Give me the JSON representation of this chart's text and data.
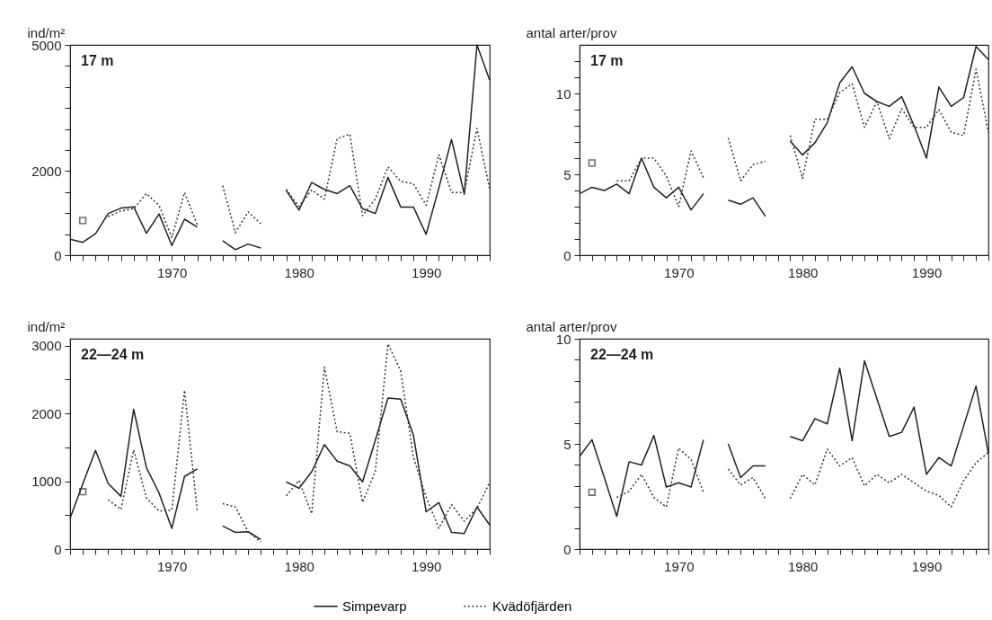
{
  "chart_data": [
    {
      "type": "line",
      "title": "17 m",
      "ylabel": "ind/m²",
      "legend": "bottom",
      "grid": false,
      "xlim": [
        1962,
        1995
      ],
      "ylim": [
        0,
        5000
      ],
      "xticks": [
        {
          "value": 1962,
          "label": null
        },
        {
          "value": 1963,
          "label": null
        },
        {
          "value": 1964,
          "label": null
        },
        {
          "value": 1965,
          "label": null
        },
        {
          "value": 1966,
          "label": null
        },
        {
          "value": 1967,
          "label": null
        },
        {
          "value": 1968,
          "label": null
        },
        {
          "value": 1969,
          "label": null
        },
        1970,
        {
          "value": 1971,
          "label": null
        },
        {
          "value": 1972,
          "label": null
        },
        {
          "value": 1973,
          "label": null
        },
        {
          "value": 1974,
          "label": null
        },
        {
          "value": 1975,
          "label": null
        },
        {
          "value": 1976,
          "label": null
        },
        {
          "value": 1977,
          "label": null
        },
        {
          "value": 1978,
          "label": null
        },
        {
          "value": 1979,
          "label": null
        },
        1980,
        {
          "value": 1981,
          "label": null
        },
        {
          "value": 1982,
          "label": null
        },
        {
          "value": 1983,
          "label": null
        },
        {
          "value": 1984,
          "label": null
        },
        {
          "value": 1985,
          "label": null
        },
        {
          "value": 1986,
          "label": null
        },
        {
          "value": 1987,
          "label": null
        },
        {
          "value": 1988,
          "label": null
        },
        {
          "value": 1989,
          "label": null
        },
        1990,
        {
          "value": 1991,
          "label": null
        },
        {
          "value": 1992,
          "label": null
        },
        {
          "value": 1993,
          "label": null
        },
        {
          "value": 1994,
          "label": null
        },
        {
          "value": 1995,
          "label": null
        }
      ],
      "yticks": [
        0,
        {
          "value": 500,
          "label": null
        },
        {
          "value": 1000,
          "label": null
        },
        {
          "value": 1500,
          "label": null
        },
        2000,
        {
          "value": 2500,
          "label": null
        },
        {
          "value": 3000,
          "label": null
        },
        {
          "value": 3500,
          "label": null
        },
        {
          "value": 4000,
          "label": null
        },
        {
          "value": 4500,
          "label": null
        },
        5000
      ],
      "x": [
        1962,
        1963,
        1964,
        1965,
        1966,
        1967,
        1968,
        1969,
        1970,
        1971,
        1972,
        1973,
        1974,
        1975,
        1976,
        1977,
        1978,
        1979,
        1980,
        1981,
        1982,
        1983,
        1984,
        1985,
        1986,
        1987,
        1988,
        1989,
        1990,
        1991,
        1992,
        1993,
        1994,
        1995
      ],
      "series": [
        {
          "name": "Simpevarp",
          "color": "#231f20",
          "line_style": "solid",
          "values": [
            380,
            305,
            510,
            990,
            1120,
            1150,
            520,
            980,
            230,
            855,
            670,
            null,
            345,
            130,
            265,
            170,
            null,
            1540,
            1070,
            1730,
            1565,
            1465,
            1655,
            1105,
            990,
            1850,
            1145,
            1145,
            495,
            1600,
            2750,
            1450,
            5000,
            4160
          ]
        },
        {
          "name": "Kvädöfjärden",
          "color": "#333333",
          "line_style": "dotted",
          "values": [
            null,
            825,
            null,
            915,
            1055,
            1105,
            1465,
            1185,
            420,
            1490,
            725,
            null,
            1655,
            535,
            1030,
            750,
            null,
            1565,
            1160,
            1550,
            1335,
            2770,
            2880,
            940,
            1335,
            2100,
            1755,
            1700,
            1185,
            2390,
            1490,
            1490,
            3015,
            1565
          ]
        }
      ]
    },
    {
      "type": "line",
      "title": "17 m",
      "ylabel": "antal arter/prov",
      "legend": "bottom",
      "grid": false,
      "xlim": [
        1962,
        1995
      ],
      "ylim": [
        0,
        13
      ],
      "xticks": [
        {
          "value": 1962,
          "label": null
        },
        {
          "value": 1963,
          "label": null
        },
        {
          "value": 1964,
          "label": null
        },
        {
          "value": 1965,
          "label": null
        },
        {
          "value": 1966,
          "label": null
        },
        {
          "value": 1967,
          "label": null
        },
        {
          "value": 1968,
          "label": null
        },
        {
          "value": 1969,
          "label": null
        },
        1970,
        {
          "value": 1971,
          "label": null
        },
        {
          "value": 1972,
          "label": null
        },
        {
          "value": 1973,
          "label": null
        },
        {
          "value": 1974,
          "label": null
        },
        {
          "value": 1975,
          "label": null
        },
        {
          "value": 1976,
          "label": null
        },
        {
          "value": 1977,
          "label": null
        },
        {
          "value": 1978,
          "label": null
        },
        {
          "value": 1979,
          "label": null
        },
        1980,
        {
          "value": 1981,
          "label": null
        },
        {
          "value": 1982,
          "label": null
        },
        {
          "value": 1983,
          "label": null
        },
        {
          "value": 1984,
          "label": null
        },
        {
          "value": 1985,
          "label": null
        },
        {
          "value": 1986,
          "label": null
        },
        {
          "value": 1987,
          "label": null
        },
        {
          "value": 1988,
          "label": null
        },
        {
          "value": 1989,
          "label": null
        },
        1990,
        {
          "value": 1991,
          "label": null
        },
        {
          "value": 1992,
          "label": null
        },
        {
          "value": 1993,
          "label": null
        },
        {
          "value": 1994,
          "label": null
        },
        {
          "value": 1995,
          "label": null
        }
      ],
      "yticks": [
        0,
        {
          "value": 1,
          "label": null
        },
        {
          "value": 2,
          "label": null
        },
        {
          "value": 3,
          "label": null
        },
        {
          "value": 4,
          "label": null
        },
        5,
        {
          "value": 6,
          "label": null
        },
        {
          "value": 7,
          "label": null
        },
        {
          "value": 8,
          "label": null
        },
        {
          "value": 9,
          "label": null
        },
        10,
        {
          "value": 11,
          "label": null
        },
        {
          "value": 12,
          "label": null
        }
      ],
      "x": [
        1962,
        1963,
        1964,
        1965,
        1966,
        1967,
        1968,
        1969,
        1970,
        1971,
        1972,
        1973,
        1974,
        1975,
        1976,
        1977,
        1978,
        1979,
        1980,
        1981,
        1982,
        1983,
        1984,
        1985,
        1986,
        1987,
        1988,
        1989,
        1990,
        1991,
        1992,
        1993,
        1994,
        1995
      ],
      "series": [
        {
          "name": "Simpevarp",
          "color": "#231f20",
          "line_style": "solid",
          "values": [
            3.8,
            4.2,
            4.0,
            4.4,
            3.8,
            6.0,
            4.2,
            3.55,
            4.2,
            2.8,
            3.8,
            null,
            3.4,
            3.15,
            3.55,
            2.4,
            null,
            7.05,
            6.2,
            6.95,
            8.2,
            10.65,
            11.65,
            10.0,
            9.5,
            9.2,
            9.8,
            8.0,
            6.0,
            10.4,
            9.2,
            9.75,
            12.9,
            12.1
          ]
        },
        {
          "name": "Kvädöfjärden",
          "color": "#333333",
          "line_style": "dotted",
          "values": [
            null,
            5.7,
            null,
            4.6,
            4.6,
            6.0,
            6.0,
            4.9,
            3.0,
            6.45,
            4.8,
            null,
            7.25,
            4.6,
            5.6,
            5.8,
            null,
            7.4,
            4.75,
            8.4,
            8.4,
            10.05,
            10.6,
            7.9,
            9.5,
            7.2,
            9.05,
            7.9,
            7.9,
            9.0,
            7.6,
            7.4,
            11.5,
            7.6
          ]
        }
      ]
    },
    {
      "type": "line",
      "title": "22—24 m",
      "ylabel": "ind/m²",
      "legend": "bottom",
      "grid": false,
      "xlim": [
        1962,
        1995
      ],
      "ylim": [
        0,
        3100
      ],
      "xticks": [
        {
          "value": 1962,
          "label": null
        },
        {
          "value": 1963,
          "label": null
        },
        {
          "value": 1964,
          "label": null
        },
        {
          "value": 1965,
          "label": null
        },
        {
          "value": 1966,
          "label": null
        },
        {
          "value": 1967,
          "label": null
        },
        {
          "value": 1968,
          "label": null
        },
        {
          "value": 1969,
          "label": null
        },
        1970,
        {
          "value": 1971,
          "label": null
        },
        {
          "value": 1972,
          "label": null
        },
        {
          "value": 1973,
          "label": null
        },
        {
          "value": 1974,
          "label": null
        },
        {
          "value": 1975,
          "label": null
        },
        {
          "value": 1976,
          "label": null
        },
        {
          "value": 1977,
          "label": null
        },
        {
          "value": 1978,
          "label": null
        },
        {
          "value": 1979,
          "label": null
        },
        1980,
        {
          "value": 1981,
          "label": null
        },
        {
          "value": 1982,
          "label": null
        },
        {
          "value": 1983,
          "label": null
        },
        {
          "value": 1984,
          "label": null
        },
        {
          "value": 1985,
          "label": null
        },
        {
          "value": 1986,
          "label": null
        },
        {
          "value": 1987,
          "label": null
        },
        {
          "value": 1988,
          "label": null
        },
        {
          "value": 1989,
          "label": null
        },
        1990,
        {
          "value": 1991,
          "label": null
        },
        {
          "value": 1992,
          "label": null
        },
        {
          "value": 1993,
          "label": null
        },
        {
          "value": 1994,
          "label": null
        },
        {
          "value": 1995,
          "label": null
        }
      ],
      "yticks": [
        0,
        {
          "value": 500,
          "label": null
        },
        1000,
        {
          "value": 1500,
          "label": null
        },
        2000,
        {
          "value": 2500,
          "label": null
        },
        3000
      ],
      "x": [
        1962,
        1963,
        1964,
        1965,
        1966,
        1967,
        1968,
        1969,
        1970,
        1971,
        1972,
        1973,
        1974,
        1975,
        1976,
        1977,
        1978,
        1979,
        1980,
        1981,
        1982,
        1983,
        1984,
        1985,
        1986,
        1987,
        1988,
        1989,
        1990,
        1991,
        1992,
        1993,
        1994,
        1995
      ],
      "series": [
        {
          "name": "Simpevarp",
          "color": "#231f20",
          "line_style": "solid",
          "values": [
            455,
            960,
            1455,
            965,
            777,
            2060,
            1200,
            825,
            305,
            1070,
            1180,
            null,
            340,
            245,
            255,
            140,
            null,
            990,
            895,
            1140,
            1540,
            1295,
            1225,
            990,
            1600,
            2225,
            2210,
            1680,
            550,
            685,
            245,
            230,
            620,
            355
          ]
        },
        {
          "name": "Kvädöfjärden",
          "color": "#333333",
          "line_style": "dotted",
          "values": [
            null,
            845,
            null,
            725,
            585,
            1460,
            755,
            560,
            575,
            2340,
            565,
            null,
            670,
            620,
            255,
            105,
            null,
            785,
            1010,
            520,
            2680,
            1730,
            1705,
            690,
            1140,
            3025,
            2625,
            1350,
            765,
            305,
            655,
            410,
            600,
            985
          ]
        }
      ]
    },
    {
      "type": "line",
      "title": "22—24 m",
      "ylabel": "antal arter/prov",
      "legend": "bottom",
      "grid": false,
      "xlim": [
        1962,
        1995
      ],
      "ylim": [
        0,
        10
      ],
      "xticks": [
        {
          "value": 1962,
          "label": null
        },
        {
          "value": 1963,
          "label": null
        },
        {
          "value": 1964,
          "label": null
        },
        {
          "value": 1965,
          "label": null
        },
        {
          "value": 1966,
          "label": null
        },
        {
          "value": 1967,
          "label": null
        },
        {
          "value": 1968,
          "label": null
        },
        {
          "value": 1969,
          "label": null
        },
        1970,
        {
          "value": 1971,
          "label": null
        },
        {
          "value": 1972,
          "label": null
        },
        {
          "value": 1973,
          "label": null
        },
        {
          "value": 1974,
          "label": null
        },
        {
          "value": 1975,
          "label": null
        },
        {
          "value": 1976,
          "label": null
        },
        {
          "value": 1977,
          "label": null
        },
        {
          "value": 1978,
          "label": null
        },
        {
          "value": 1979,
          "label": null
        },
        1980,
        {
          "value": 1981,
          "label": null
        },
        {
          "value": 1982,
          "label": null
        },
        {
          "value": 1983,
          "label": null
        },
        {
          "value": 1984,
          "label": null
        },
        {
          "value": 1985,
          "label": null
        },
        {
          "value": 1986,
          "label": null
        },
        {
          "value": 1987,
          "label": null
        },
        {
          "value": 1988,
          "label": null
        },
        {
          "value": 1989,
          "label": null
        },
        1990,
        {
          "value": 1991,
          "label": null
        },
        {
          "value": 1992,
          "label": null
        },
        {
          "value": 1993,
          "label": null
        },
        {
          "value": 1994,
          "label": null
        },
        {
          "value": 1995,
          "label": null
        }
      ],
      "yticks": [
        0,
        {
          "value": 1,
          "label": null
        },
        {
          "value": 2,
          "label": null
        },
        {
          "value": 3,
          "label": null
        },
        {
          "value": 4,
          "label": null
        },
        5,
        {
          "value": 6,
          "label": null
        },
        {
          "value": 7,
          "label": null
        },
        {
          "value": 8,
          "label": null
        },
        {
          "value": 9,
          "label": null
        },
        10
      ],
      "x": [
        1962,
        1963,
        1964,
        1965,
        1966,
        1967,
        1968,
        1969,
        1970,
        1971,
        1972,
        1973,
        1974,
        1975,
        1976,
        1977,
        1978,
        1979,
        1980,
        1981,
        1982,
        1983,
        1984,
        1985,
        1986,
        1987,
        1988,
        1989,
        1990,
        1991,
        1992,
        1993,
        1994,
        1995
      ],
      "series": [
        {
          "name": "Simpevarp",
          "color": "#231f20",
          "line_style": "solid",
          "values": [
            4.4,
            5.2,
            3.4,
            1.55,
            4.15,
            4.0,
            5.4,
            2.95,
            3.15,
            2.95,
            5.2,
            null,
            5.0,
            3.4,
            3.95,
            3.95,
            null,
            5.35,
            5.15,
            6.2,
            5.95,
            8.6,
            5.15,
            8.95,
            7.15,
            5.35,
            5.55,
            6.75,
            3.55,
            4.35,
            3.95,
            5.85,
            7.75,
            4.55
          ]
        },
        {
          "name": "Kvädöfjärden",
          "color": "#333333",
          "line_style": "dotted",
          "values": [
            null,
            2.7,
            null,
            2.45,
            2.75,
            3.55,
            2.45,
            2.0,
            4.8,
            4.25,
            2.7,
            null,
            3.8,
            3.05,
            3.4,
            2.4,
            null,
            2.4,
            3.55,
            3.05,
            4.75,
            3.95,
            4.35,
            3.0,
            3.55,
            3.15,
            3.55,
            3.15,
            2.75,
            2.55,
            2.0,
            3.25,
            4.1,
            4.6
          ]
        }
      ]
    }
  ]
}
